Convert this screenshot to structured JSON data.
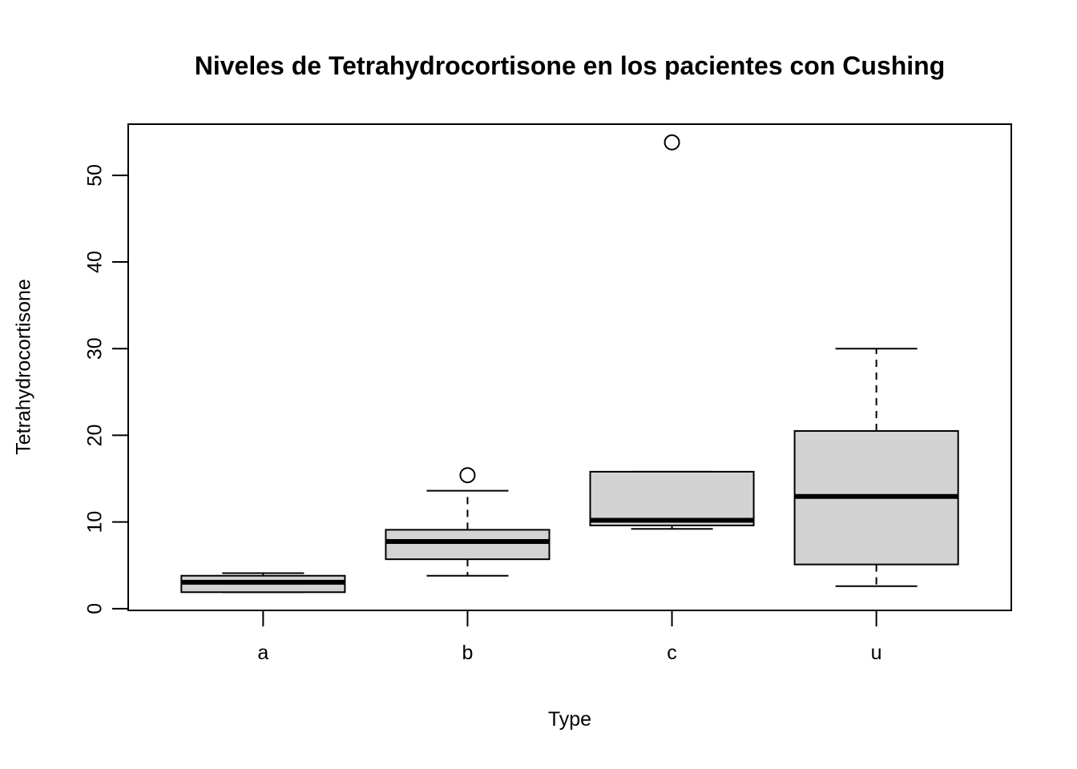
{
  "chart_data": {
    "type": "boxplot",
    "title": "Niveles de Tetrahydrocortisone en los pacientes con Cushing",
    "xlabel": "Type",
    "ylabel": "Tetrahydrocortisone",
    "categories": [
      "a",
      "b",
      "c",
      "u"
    ],
    "yticks": [
      0,
      10,
      20,
      30,
      40,
      50
    ],
    "ylim": [
      -0.2,
      55.9
    ],
    "grid": false,
    "box_fill": "#d3d3d3",
    "line_color": "#000000",
    "series": [
      {
        "name": "a",
        "whisker_low": 1.9,
        "q1": 1.9,
        "median": 3.05,
        "q3": 3.8,
        "whisker_high": 4.1,
        "outliers": []
      },
      {
        "name": "b",
        "whisker_low": 3.8,
        "q1": 5.7,
        "median": 7.75,
        "q3": 9.1,
        "whisker_high": 13.6,
        "outliers": [
          15.4
        ]
      },
      {
        "name": "c",
        "whisker_low": 9.2,
        "q1": 9.6,
        "median": 10.2,
        "q3": 15.8,
        "whisker_high": 15.8,
        "outliers": [
          53.8
        ]
      },
      {
        "name": "u",
        "whisker_low": 2.6,
        "q1": 5.1,
        "median": 12.95,
        "q3": 20.5,
        "whisker_high": 30.0,
        "outliers": []
      }
    ]
  }
}
